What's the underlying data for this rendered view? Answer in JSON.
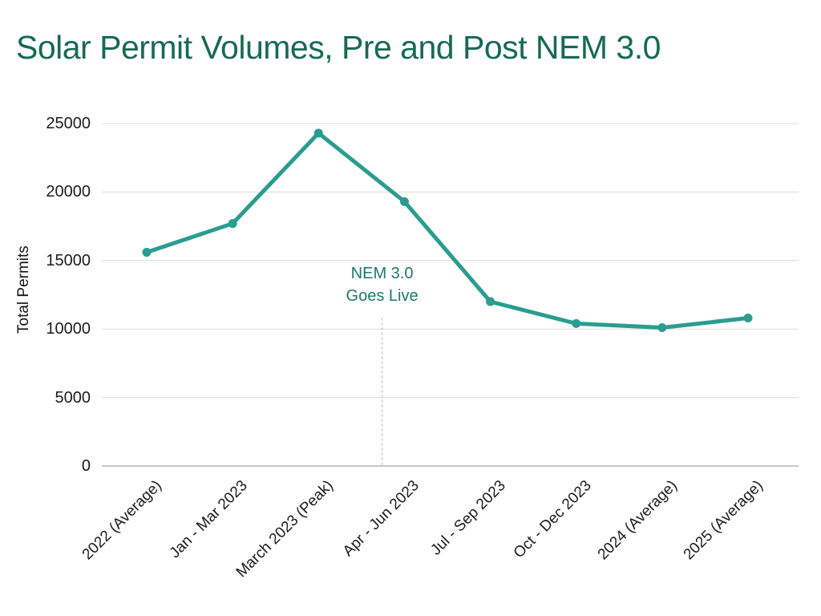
{
  "header": {
    "title": "Solar Permit Volumes, Pre and Post NEM 3.0",
    "title_color": "#176a53"
  },
  "colors": {
    "background": "#ffffff",
    "gridline": "#dcdcdc",
    "axis_line": "#909090",
    "tick_label": "#1c1c1c",
    "annotation_line": "#c9c9c9"
  },
  "chart_data": {
    "type": "line",
    "title": "Solar Permit Volumes, Pre and Post NEM 3.0",
    "xlabel": "",
    "ylabel": "Total Permits",
    "categories": [
      "2022 (Average)",
      "Jan - Mar 2023",
      "March 2023 (Peak)",
      "Apr - Jun 2023",
      "Jul - Sep 2023",
      "Oct - Dec 2023",
      "2024 (Average)",
      "2025 (Average)"
    ],
    "series": [
      {
        "name": "Total Permits",
        "color": "#2a9d8f",
        "values": [
          15600,
          17700,
          24300,
          19300,
          12000,
          10400,
          10100,
          10800
        ]
      }
    ],
    "ylim": [
      0,
      25000
    ],
    "y_ticks": [
      0,
      5000,
      10000,
      15000,
      20000,
      25000
    ],
    "grid": "horizontal",
    "legend": "none",
    "marker": "circle",
    "annotation": {
      "lines": [
        "NEM 3.0",
        "Goes Live"
      ],
      "color": "#1e7a60",
      "x_index": 2.74,
      "line_top_value": 10800,
      "line_style": "dashed"
    }
  }
}
